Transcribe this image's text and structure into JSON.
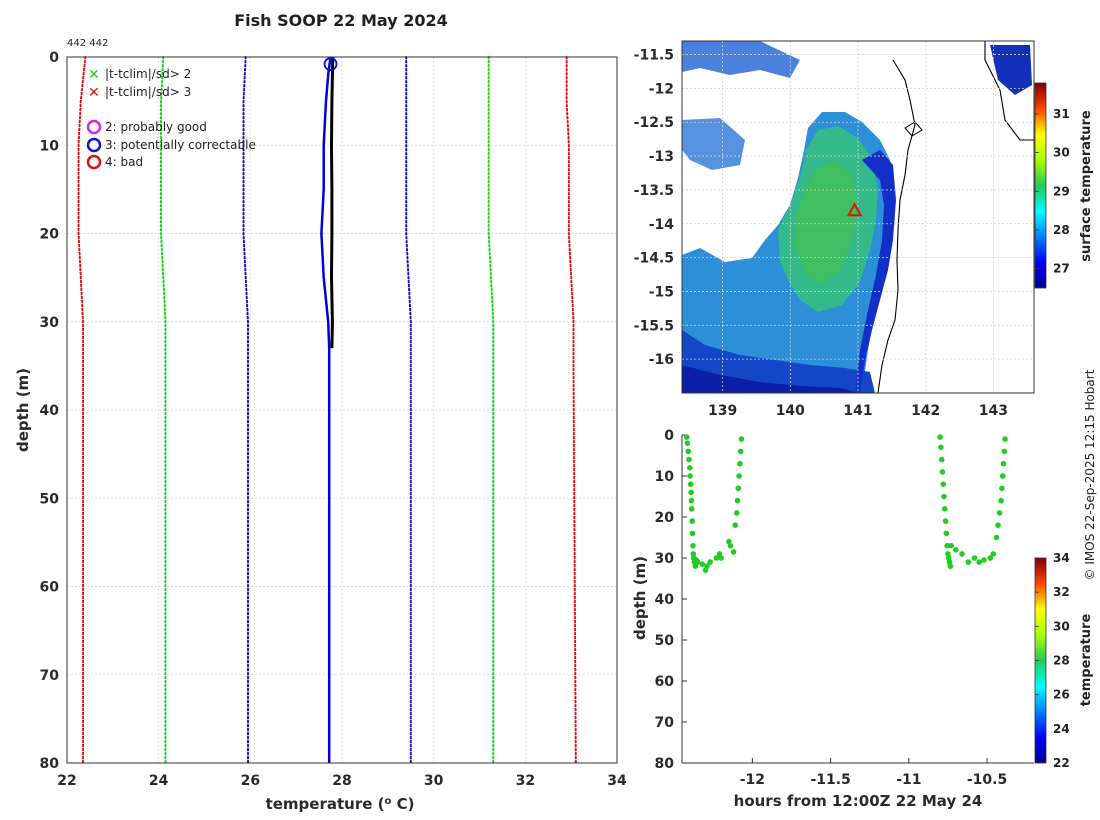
{
  "header": {
    "title": "Fish SOOP 22 May 2024",
    "cast_ids": "442 442",
    "credit": "© IMOS 22-Sep-2025 12:15 Hobart"
  },
  "legend": {
    "items": [
      {
        "label": "|t-tclim|/sd> 2",
        "color": "#22cc22",
        "marker": "x"
      },
      {
        "label": "|t-tclim|/sd> 3",
        "color": "#dd1111",
        "marker": "x"
      },
      {
        "label": "2: probably good",
        "color": "#dd22dd",
        "marker": "o"
      },
      {
        "label": "3: potentially correctable",
        "color": "#1111dd",
        "marker": "o"
      },
      {
        "label": "4: bad",
        "color": "#dd1111",
        "marker": "o"
      }
    ]
  },
  "colorbars": {
    "map": {
      "label": "surface temperature",
      "ticks": [
        "27",
        "28",
        "29",
        "30",
        "31"
      ]
    },
    "section": {
      "label": "temperature",
      "ticks": [
        "22",
        "24",
        "26",
        "28",
        "30",
        "32",
        "34"
      ]
    }
  },
  "chart_data": [
    {
      "type": "line",
      "title": "Fish SOOP 22 May 2024",
      "xlabel": "temperature (o C)",
      "ylabel": "depth (m)",
      "xlim": [
        22,
        34
      ],
      "ylim": [
        0,
        80
      ],
      "y_inverted": true,
      "xticks": [
        "22",
        "24",
        "26",
        "28",
        "30",
        "32",
        "34"
      ],
      "yticks": [
        "0",
        "10",
        "20",
        "30",
        "40",
        "50",
        "60",
        "70",
        "80"
      ],
      "series": [
        {
          "name": "clim -3sd",
          "color": "#dd1111",
          "style": "dotted",
          "depth": [
            0,
            5,
            10,
            15,
            20,
            25,
            30,
            35,
            80
          ],
          "temp": [
            22.4,
            22.3,
            22.25,
            22.25,
            22.25,
            22.3,
            22.35,
            22.35,
            22.35
          ]
        },
        {
          "name": "clim -2sd",
          "color": "#22cc22",
          "style": "dotted",
          "depth": [
            0,
            5,
            10,
            15,
            20,
            25,
            30,
            35,
            80
          ],
          "temp": [
            24.1,
            24.05,
            24.05,
            24.05,
            24.05,
            24.1,
            24.15,
            24.15,
            24.15
          ]
        },
        {
          "name": "clim -1sd",
          "color": "#1111bb",
          "style": "dotted",
          "depth": [
            0,
            5,
            10,
            15,
            20,
            25,
            30,
            35,
            80
          ],
          "temp": [
            25.9,
            25.85,
            25.85,
            25.85,
            25.85,
            25.9,
            25.95,
            25.95,
            25.95
          ]
        },
        {
          "name": "clim +1sd",
          "color": "#1111bb",
          "style": "dotted",
          "depth": [
            0,
            5,
            10,
            15,
            20,
            25,
            30,
            35,
            80
          ],
          "temp": [
            29.4,
            29.4,
            29.4,
            29.4,
            29.4,
            29.45,
            29.5,
            29.5,
            29.5
          ]
        },
        {
          "name": "clim +2sd",
          "color": "#22cc22",
          "style": "dotted",
          "depth": [
            0,
            5,
            10,
            15,
            20,
            25,
            30,
            35,
            80
          ],
          "temp": [
            31.2,
            31.2,
            31.2,
            31.2,
            31.2,
            31.25,
            31.3,
            31.3,
            31.3
          ]
        },
        {
          "name": "clim +3sd",
          "color": "#dd1111",
          "style": "dotted",
          "depth": [
            0,
            5,
            10,
            15,
            20,
            25,
            30,
            35,
            80
          ],
          "temp": [
            32.9,
            32.9,
            32.95,
            32.95,
            32.95,
            33.0,
            33.05,
            33.05,
            33.1
          ]
        },
        {
          "name": "profile flag 3",
          "color": "#0000dd",
          "style": "solid",
          "depth": [
            0,
            2,
            5,
            10,
            15,
            20,
            25,
            30,
            33,
            35,
            80
          ],
          "temp": [
            27.75,
            27.7,
            27.65,
            27.6,
            27.6,
            27.55,
            27.6,
            27.7,
            27.72,
            27.72,
            27.72
          ]
        },
        {
          "name": "profile",
          "color": "#000000",
          "style": "solid",
          "width": 3,
          "depth": [
            0,
            5,
            10,
            15,
            20,
            25,
            30,
            33
          ],
          "temp": [
            27.8,
            27.78,
            27.77,
            27.78,
            27.78,
            27.77,
            27.79,
            27.78
          ]
        }
      ],
      "markers": [
        {
          "name": "surface flag 3",
          "color": "#1111dd",
          "shape": "circle",
          "temp": 27.75,
          "depth": 0.8
        }
      ]
    },
    {
      "type": "heatmap",
      "title": "",
      "xlabel": "",
      "ylabel": "",
      "xlim": [
        138.4,
        143.6
      ],
      "ylim": [
        -16.5,
        -11.3
      ],
      "xticks": [
        "139",
        "140",
        "141",
        "142",
        "143"
      ],
      "yticks": [
        "-11.5",
        "-12",
        "-12.5",
        "-13",
        "-13.5",
        "-14",
        "-14.5",
        "-15",
        "-15.5",
        "-16"
      ],
      "colorbar": {
        "label": "surface temperature",
        "range": [
          26.5,
          31.8
        ]
      },
      "station": {
        "lon": 140.95,
        "lat": -13.8,
        "marker": "triangle",
        "color": "#dd1111"
      }
    },
    {
      "type": "scatter",
      "title": "",
      "xlabel": "hours from 12:00Z 22 May 24",
      "ylabel": "depth (m)",
      "xlim": [
        -12.45,
        -10.2
      ],
      "ylim": [
        0,
        80
      ],
      "y_inverted": true,
      "xticks": [
        "-12",
        "-11.5",
        "-11",
        "-10.5"
      ],
      "yticks": [
        "0",
        "10",
        "20",
        "30",
        "40",
        "50",
        "60",
        "70",
        "80"
      ],
      "colorbar": {
        "label": "temperature",
        "range": [
          22,
          34
        ]
      },
      "color": "#22cc22",
      "points": [
        {
          "x": -12.42,
          "y": 0.5
        },
        {
          "x": -12.415,
          "y": 2
        },
        {
          "x": -12.41,
          "y": 4
        },
        {
          "x": -12.405,
          "y": 6
        },
        {
          "x": -12.4,
          "y": 8
        },
        {
          "x": -12.398,
          "y": 10
        },
        {
          "x": -12.395,
          "y": 12
        },
        {
          "x": -12.392,
          "y": 14
        },
        {
          "x": -12.39,
          "y": 16
        },
        {
          "x": -12.388,
          "y": 18
        },
        {
          "x": -12.385,
          "y": 21
        },
        {
          "x": -12.383,
          "y": 24
        },
        {
          "x": -12.38,
          "y": 27
        },
        {
          "x": -12.378,
          "y": 29
        },
        {
          "x": -12.375,
          "y": 30
        },
        {
          "x": -12.37,
          "y": 31
        },
        {
          "x": -12.365,
          "y": 32
        },
        {
          "x": -12.36,
          "y": 30.5
        },
        {
          "x": -12.35,
          "y": 31
        },
        {
          "x": -12.32,
          "y": 31.5
        },
        {
          "x": -12.3,
          "y": 33
        },
        {
          "x": -12.29,
          "y": 32
        },
        {
          "x": -12.27,
          "y": 31
        },
        {
          "x": -12.23,
          "y": 30
        },
        {
          "x": -12.21,
          "y": 29
        },
        {
          "x": -12.2,
          "y": 30
        },
        {
          "x": -12.15,
          "y": 26
        },
        {
          "x": -12.14,
          "y": 27
        },
        {
          "x": -12.12,
          "y": 28.5
        },
        {
          "x": -12.11,
          "y": 22
        },
        {
          "x": -12.1,
          "y": 19
        },
        {
          "x": -12.095,
          "y": 16
        },
        {
          "x": -12.09,
          "y": 13
        },
        {
          "x": -12.085,
          "y": 10
        },
        {
          "x": -12.08,
          "y": 7
        },
        {
          "x": -12.075,
          "y": 4
        },
        {
          "x": -12.07,
          "y": 1
        },
        {
          "x": -10.8,
          "y": 0.5
        },
        {
          "x": -10.795,
          "y": 3
        },
        {
          "x": -10.79,
          "y": 6
        },
        {
          "x": -10.785,
          "y": 9
        },
        {
          "x": -10.78,
          "y": 12
        },
        {
          "x": -10.775,
          "y": 15
        },
        {
          "x": -10.77,
          "y": 18
        },
        {
          "x": -10.765,
          "y": 21
        },
        {
          "x": -10.76,
          "y": 24
        },
        {
          "x": -10.755,
          "y": 27
        },
        {
          "x": -10.75,
          "y": 29
        },
        {
          "x": -10.745,
          "y": 30
        },
        {
          "x": -10.74,
          "y": 31
        },
        {
          "x": -10.735,
          "y": 32
        },
        {
          "x": -10.73,
          "y": 27
        },
        {
          "x": -10.7,
          "y": 28
        },
        {
          "x": -10.66,
          "y": 29
        },
        {
          "x": -10.62,
          "y": 31
        },
        {
          "x": -10.58,
          "y": 30
        },
        {
          "x": -10.55,
          "y": 31
        },
        {
          "x": -10.52,
          "y": 30.5
        },
        {
          "x": -10.48,
          "y": 30
        },
        {
          "x": -10.46,
          "y": 29
        },
        {
          "x": -10.44,
          "y": 25
        },
        {
          "x": -10.43,
          "y": 22
        },
        {
          "x": -10.42,
          "y": 19
        },
        {
          "x": -10.41,
          "y": 16
        },
        {
          "x": -10.405,
          "y": 13
        },
        {
          "x": -10.4,
          "y": 10
        },
        {
          "x": -10.395,
          "y": 7
        },
        {
          "x": -10.39,
          "y": 4
        },
        {
          "x": -10.385,
          "y": 1
        }
      ]
    }
  ]
}
